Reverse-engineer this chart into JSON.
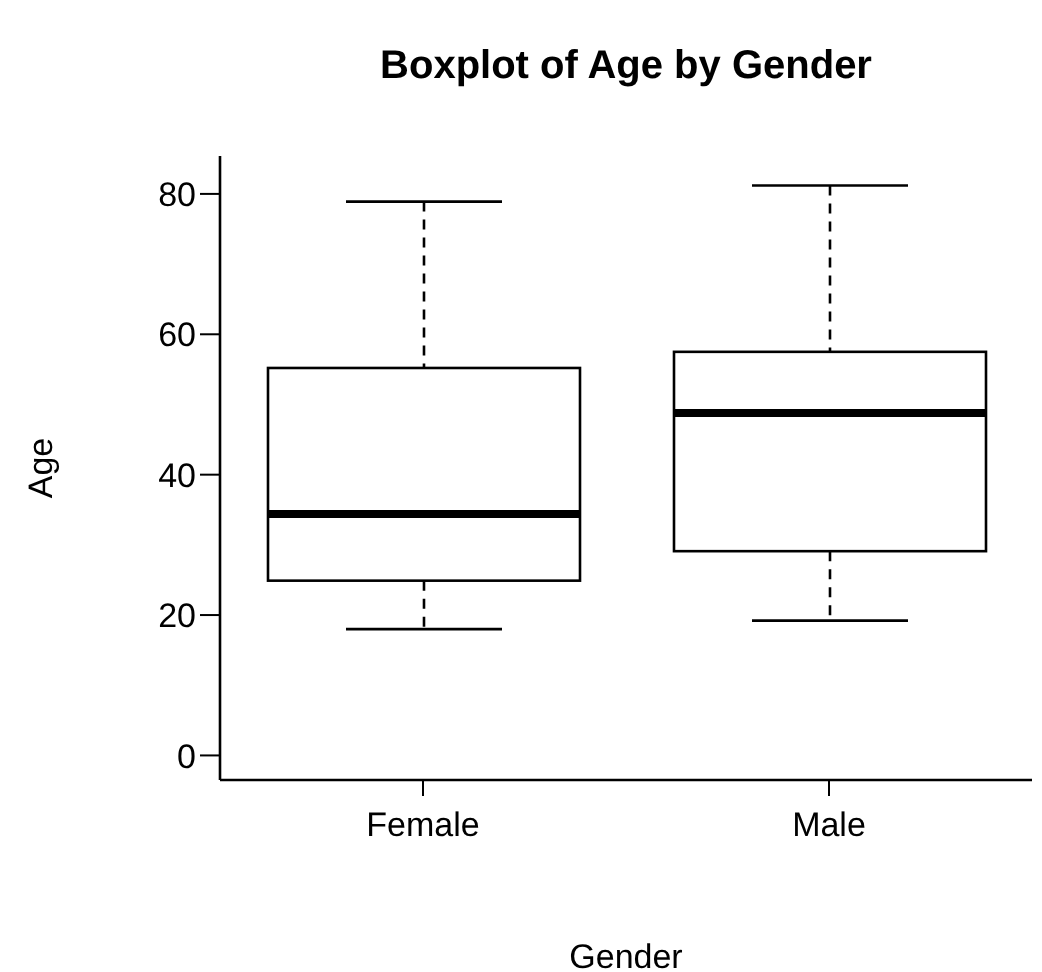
{
  "chart_data": {
    "type": "box",
    "title": "Boxplot of Age by Gender",
    "xlabel": "Gender",
    "ylabel": "Age",
    "categories": [
      "Female",
      "Male"
    ],
    "boxes": [
      {
        "low": 18,
        "q1": 24.9,
        "median": 34.4,
        "q3": 55.2,
        "high": 78.9
      },
      {
        "low": 19.2,
        "q1": 29.1,
        "median": 48.8,
        "q3": 57.5,
        "high": 81.2
      }
    ],
    "ylim": [
      -3.5,
      85.4
    ],
    "yticks": [
      0,
      20,
      40,
      60,
      80
    ],
    "grid": false,
    "legend": false
  }
}
